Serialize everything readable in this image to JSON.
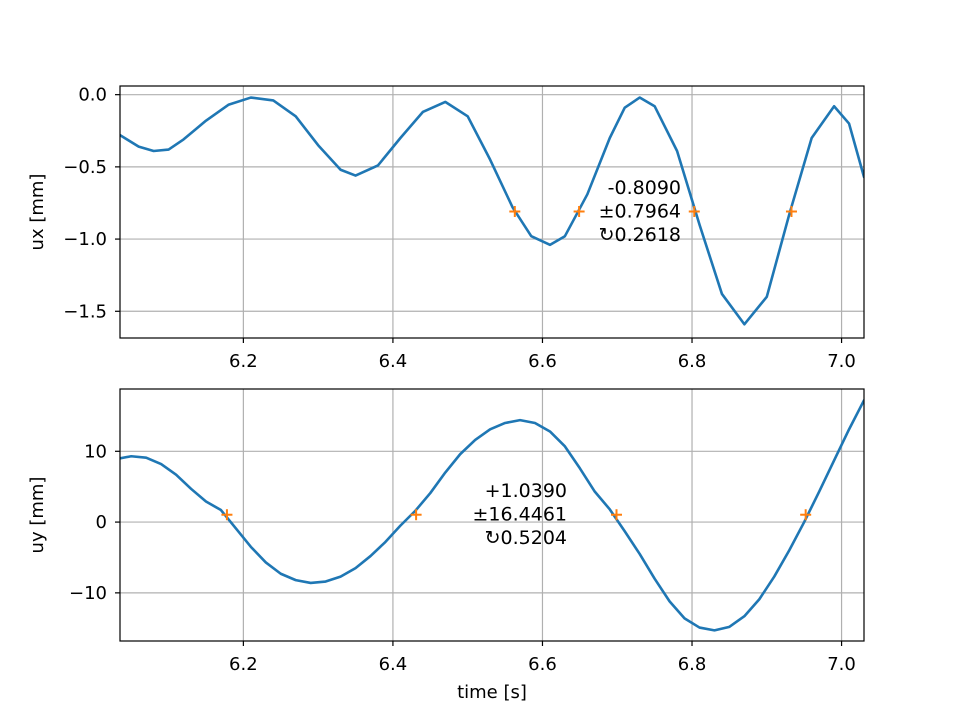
{
  "chart_data": [
    {
      "type": "line",
      "title": "",
      "xlabel": "",
      "ylabel": "ux [mm]",
      "xlim": [
        6.035,
        7.03
      ],
      "ylim": [
        -1.685,
        0.06
      ],
      "xticks": [
        6.2,
        6.4,
        6.6,
        6.8,
        7.0
      ],
      "xtick_labels": [
        "6.2",
        "6.4",
        "6.6",
        "6.8",
        "7.0"
      ],
      "yticks": [
        0.0,
        -0.5,
        -1.0,
        -1.5
      ],
      "ytick_labels": [
        "0.0",
        "−0.5",
        "−1.0",
        "−1.5"
      ],
      "grid": true,
      "line_color": "#1f77b4",
      "marker_color": "#ff7f0e",
      "series": [
        {
          "x": [
            6.035,
            6.06,
            6.08,
            6.1,
            6.12,
            6.15,
            6.18,
            6.21,
            6.24,
            6.27,
            6.3,
            6.33,
            6.35,
            6.38,
            6.41,
            6.44,
            6.47,
            6.5,
            6.53,
            6.56,
            6.585,
            6.61,
            6.63,
            6.66,
            6.69,
            6.71,
            6.73,
            6.75,
            6.78,
            6.81,
            6.84,
            6.87,
            6.9,
            6.93,
            6.96,
            6.99,
            7.01,
            7.03
          ],
          "values": [
            -0.28,
            -0.36,
            -0.39,
            -0.38,
            -0.31,
            -0.18,
            -0.07,
            -0.02,
            -0.04,
            -0.15,
            -0.35,
            -0.52,
            -0.56,
            -0.49,
            -0.3,
            -0.12,
            -0.05,
            -0.15,
            -0.45,
            -0.78,
            -0.98,
            -1.04,
            -0.98,
            -0.69,
            -0.3,
            -0.09,
            -0.02,
            -0.08,
            -0.39,
            -0.9,
            -1.38,
            -1.59,
            -1.4,
            -0.83,
            -0.3,
            -0.08,
            -0.2,
            -0.57
          ]
        }
      ],
      "markers": {
        "x": [
          6.563,
          6.649,
          6.803,
          6.933
        ],
        "y": [
          -0.809,
          -0.809,
          -0.809,
          -0.809
        ]
      },
      "annotation_lines": [
        "-0.8090",
        "±0.7964",
        "↻0.2618"
      ]
    },
    {
      "type": "line",
      "title": "",
      "xlabel": "time [s]",
      "ylabel": "uy [mm]",
      "xlim": [
        6.035,
        7.03
      ],
      "ylim": [
        -16.8,
        18.8
      ],
      "xticks": [
        6.2,
        6.4,
        6.6,
        6.8,
        7.0
      ],
      "xtick_labels": [
        "6.2",
        "6.4",
        "6.6",
        "6.8",
        "7.0"
      ],
      "yticks": [
        10,
        0,
        -10
      ],
      "ytick_labels": [
        "10",
        "0",
        "−10"
      ],
      "grid": true,
      "line_color": "#1f77b4",
      "marker_color": "#ff7f0e",
      "series": [
        {
          "x": [
            6.035,
            6.05,
            6.07,
            6.09,
            6.11,
            6.13,
            6.15,
            6.17,
            6.19,
            6.21,
            6.23,
            6.25,
            6.27,
            6.29,
            6.31,
            6.33,
            6.35,
            6.37,
            6.39,
            6.41,
            6.43,
            6.45,
            6.47,
            6.49,
            6.51,
            6.53,
            6.55,
            6.57,
            6.59,
            6.61,
            6.63,
            6.65,
            6.67,
            6.69,
            6.71,
            6.73,
            6.75,
            6.77,
            6.79,
            6.81,
            6.83,
            6.85,
            6.87,
            6.89,
            6.91,
            6.93,
            6.95,
            6.97,
            6.99,
            7.01,
            7.03
          ],
          "values": [
            9.0,
            9.3,
            9.1,
            8.2,
            6.7,
            4.7,
            2.9,
            1.7,
            -0.9,
            -3.5,
            -5.7,
            -7.3,
            -8.2,
            -8.6,
            -8.4,
            -7.7,
            -6.5,
            -4.8,
            -2.8,
            -0.5,
            1.6,
            4.1,
            7.0,
            9.6,
            11.6,
            13.1,
            14.0,
            14.4,
            14.0,
            12.8,
            10.7,
            7.6,
            4.3,
            1.8,
            -1.3,
            -4.5,
            -8.0,
            -11.2,
            -13.6,
            -14.9,
            -15.3,
            -14.8,
            -13.3,
            -10.9,
            -7.7,
            -4.0,
            0.0,
            4.3,
            8.7,
            13.1,
            17.2
          ]
        }
      ],
      "markers": {
        "x": [
          6.178,
          6.431,
          6.699,
          6.952
        ],
        "y": [
          1.039,
          1.039,
          1.039,
          1.039
        ]
      },
      "annotation_lines": [
        "+1.0390",
        "±16.4461",
        "↻0.5204"
      ]
    }
  ]
}
